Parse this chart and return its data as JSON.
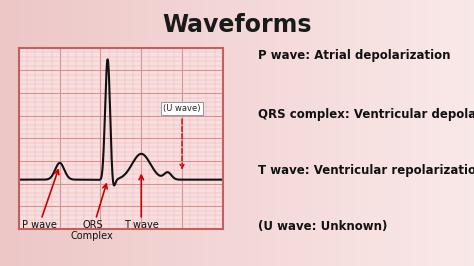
{
  "title": "Waveforms",
  "title_fontsize": 17,
  "title_fontweight": "bold",
  "title_color": "#1a1a1a",
  "bg_color": "#edc8c8",
  "ecg_panel_bg": "#f8dede",
  "ecg_border_color": "#c06060",
  "ecg_grid_major_color": "#d89090",
  "ecg_grid_minor_color": "#ebb8b8",
  "ecg_line_color": "#111111",
  "arrow_color": "#cc0000",
  "label_color": "#111111",
  "bullet_color": "#8b1a1a",
  "legend_items": [
    "P wave: Atrial depolarization",
    "QRS complex: Ventricular depolarization",
    "T wave: Ventricular repolarization",
    "(U wave: Unknown)"
  ],
  "legend_fontsize": 8.5,
  "label_fontsize": 7,
  "u_wave_box_text": "(U wave)"
}
